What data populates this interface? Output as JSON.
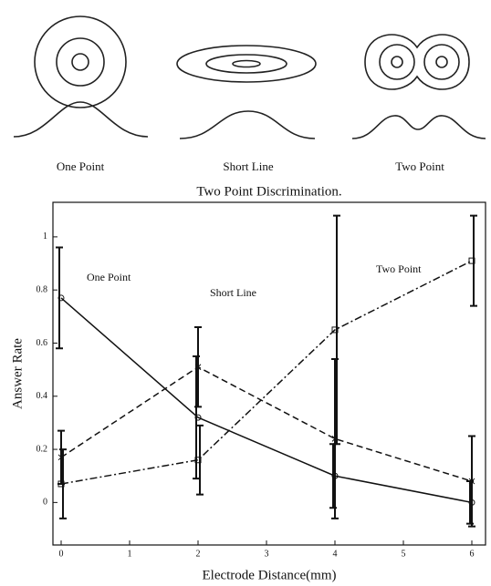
{
  "figure": {
    "panels": [
      {
        "label": "One Point"
      },
      {
        "label": "Short Line"
      },
      {
        "label": "Two Point"
      }
    ]
  },
  "chart_data": {
    "type": "line",
    "title": "Two Point Discrimination.",
    "x_label": "Electrode Distance(mm)",
    "y_label": "Answer Rate",
    "x": [
      0,
      2,
      4,
      6
    ],
    "series": [
      {
        "name": "One Point",
        "color": "#111111",
        "dash": "solid",
        "marker": "circle",
        "values": [
          0.77,
          0.32,
          0.1,
          0.0
        ],
        "errors": [
          0.19,
          0.23,
          0.12,
          0.08
        ]
      },
      {
        "name": "Short Line",
        "color": "#111111",
        "dash": "dashed",
        "marker": "x",
        "values": [
          0.17,
          0.51,
          0.24,
          0.08
        ],
        "errors": [
          0.1,
          0.15,
          0.3,
          0.17
        ]
      },
      {
        "name": "Two Point",
        "color": "#111111",
        "dash": "dashdot",
        "marker": "square",
        "values": [
          0.07,
          0.16,
          0.65,
          0.91
        ],
        "errors": [
          0.13,
          0.13,
          0.43,
          0.17
        ]
      }
    ],
    "xlim": [
      -0.12,
      6.2
    ],
    "ylim": [
      -0.16,
      1.13
    ],
    "xticks": [
      0,
      1,
      2,
      3,
      4,
      5,
      6
    ],
    "yticks": [
      0,
      0.2,
      0.4,
      0.6,
      0.8,
      1
    ]
  }
}
